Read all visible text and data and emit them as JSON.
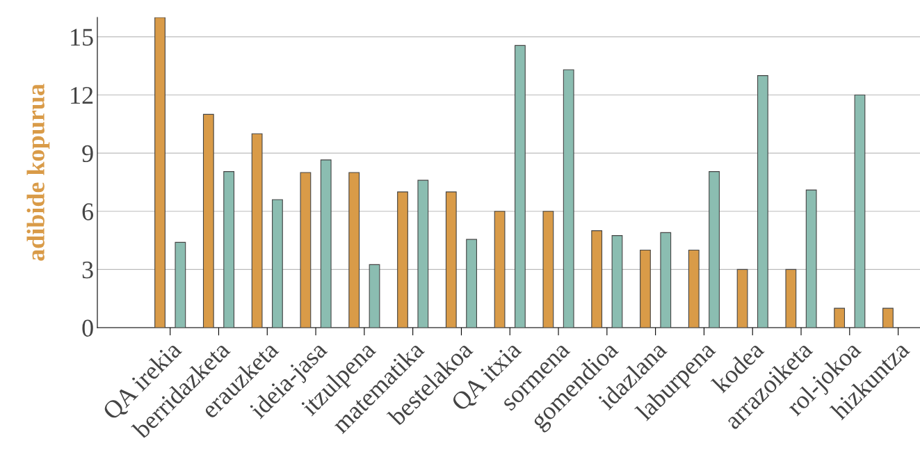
{
  "chart_data": {
    "type": "bar",
    "ylabel": "adibide kopurua",
    "categories": [
      "QA irekia",
      "berridazketa",
      "erauzketa",
      "ideia-jasa",
      "itzulpena",
      "matematika",
      "bestelakoa",
      "QA itxia",
      "sormena",
      "gomendioa",
      "idazlana",
      "laburpena",
      "kodea",
      "arrazoiketa",
      "rol-jokoa",
      "hizkuntza"
    ],
    "series": [
      {
        "color": "#d99b48",
        "values": [
          16,
          11,
          10,
          8,
          8,
          7,
          7,
          6,
          6,
          5,
          4,
          4,
          3,
          3,
          1,
          1
        ]
      },
      {
        "color": "#8bbdb1",
        "values": [
          4.4,
          8.05,
          6.6,
          8.65,
          3.25,
          7.6,
          4.55,
          14.55,
          13.3,
          4.75,
          4.9,
          8.05,
          13.0,
          7.1,
          12.0,
          null
        ]
      }
    ],
    "ylim": [
      0,
      16
    ],
    "yticks": [
      0,
      3,
      6,
      9,
      12,
      15
    ],
    "grid": "y",
    "legend": false
  }
}
